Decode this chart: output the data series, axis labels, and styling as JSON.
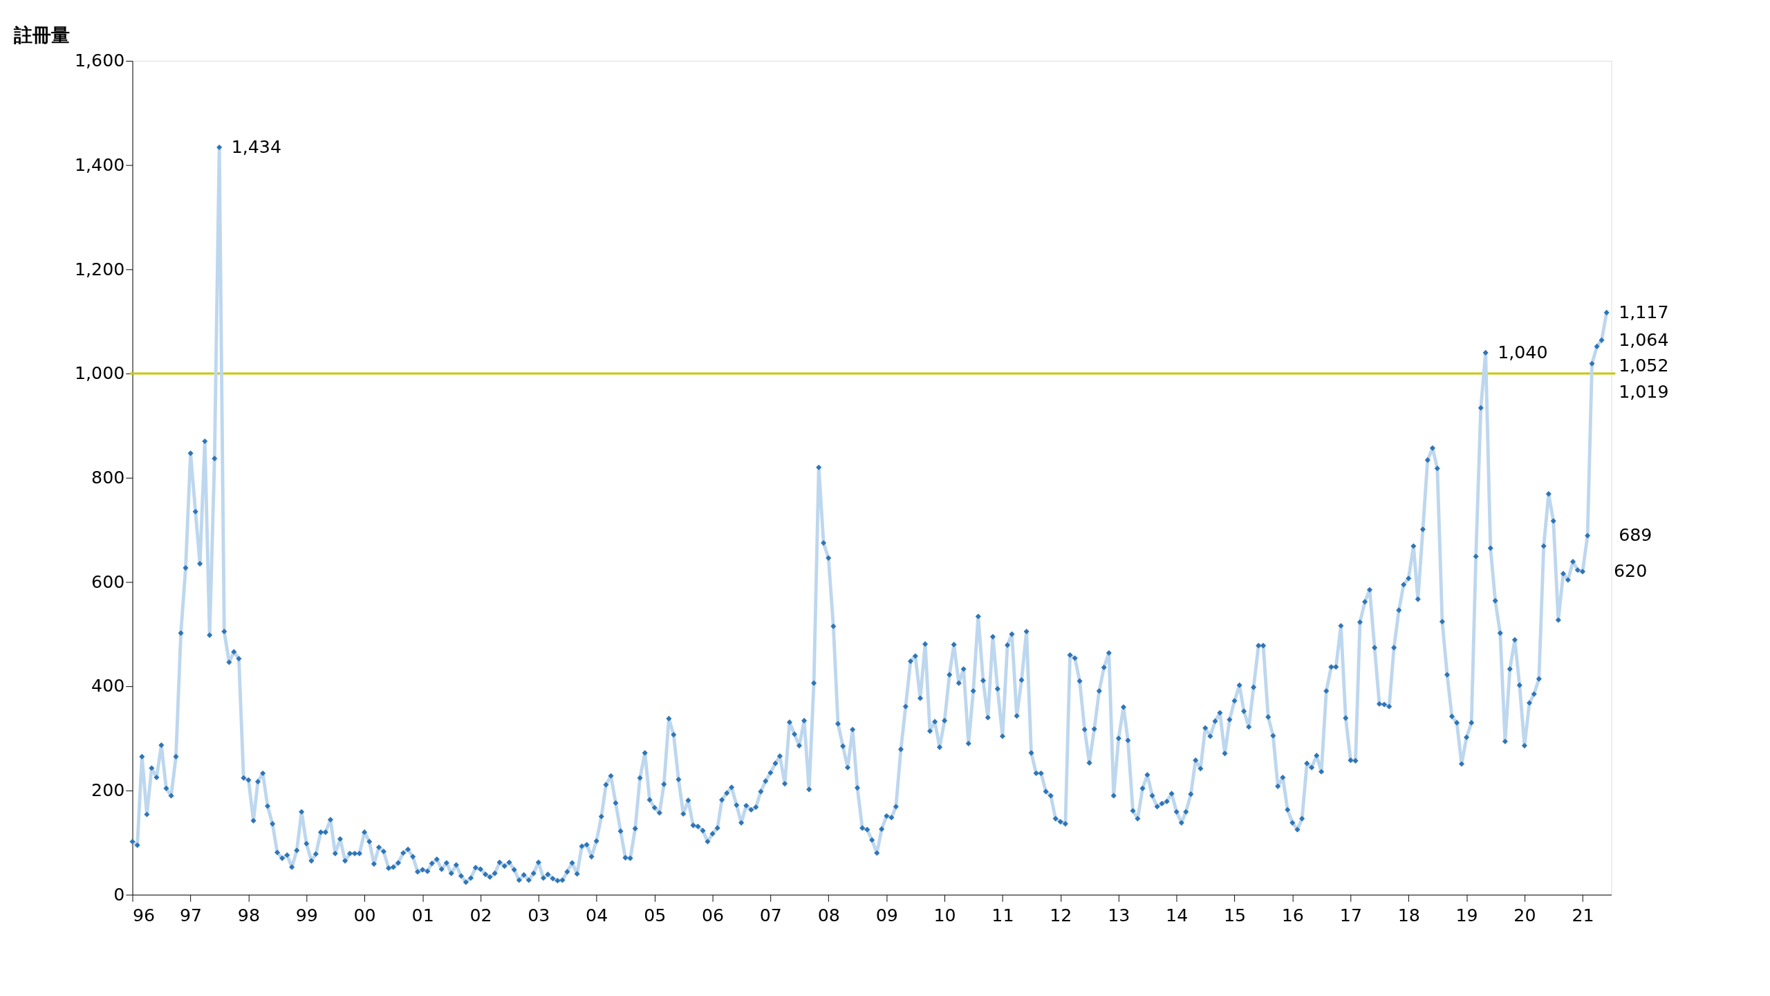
{
  "chart_data": {
    "type": "line",
    "ylabel": "註冊量",
    "x": [
      "1996-01",
      "1996-02",
      "1996-03",
      "1996-04",
      "1996-05",
      "1996-06",
      "1996-07",
      "1996-08",
      "1996-09",
      "1996-10",
      "1996-11",
      "1996-12",
      "1997-01",
      "1997-02",
      "1997-03",
      "1997-04",
      "1997-05",
      "1997-06",
      "1997-07",
      "1997-08",
      "1997-09",
      "1997-10",
      "1997-11",
      "1997-12",
      "1998-01",
      "1998-02",
      "1998-03",
      "1998-04",
      "1998-05",
      "1998-06",
      "1998-07",
      "1998-08",
      "1998-09",
      "1998-10",
      "1998-11",
      "1998-12",
      "1999-01",
      "1999-02",
      "1999-03",
      "1999-04",
      "1999-05",
      "1999-06",
      "1999-07",
      "1999-08",
      "1999-09",
      "1999-10",
      "1999-11",
      "1999-12",
      "2000-01",
      "2000-02",
      "2000-03",
      "2000-04",
      "2000-05",
      "2000-06",
      "2000-07",
      "2000-08",
      "2000-09",
      "2000-10",
      "2000-11",
      "2000-12",
      "2001-01",
      "2001-02",
      "2001-03",
      "2001-04",
      "2001-05",
      "2001-06",
      "2001-07",
      "2001-08",
      "2001-09",
      "2001-10",
      "2001-11",
      "2001-12",
      "2002-01",
      "2002-02",
      "2002-03",
      "2002-04",
      "2002-05",
      "2002-06",
      "2002-07",
      "2002-08",
      "2002-09",
      "2002-10",
      "2002-11",
      "2002-12",
      "2003-01",
      "2003-02",
      "2003-03",
      "2003-04",
      "2003-05",
      "2003-06",
      "2003-07",
      "2003-08",
      "2003-09",
      "2003-10",
      "2003-11",
      "2003-12",
      "2004-01",
      "2004-02",
      "2004-03",
      "2004-04",
      "2004-05",
      "2004-06",
      "2004-07",
      "2004-08",
      "2004-09",
      "2004-10",
      "2004-11",
      "2004-12",
      "2005-01",
      "2005-02",
      "2005-03",
      "2005-04",
      "2005-05",
      "2005-06",
      "2005-07",
      "2005-08",
      "2005-09",
      "2005-10",
      "2005-11",
      "2005-12",
      "2006-01",
      "2006-02",
      "2006-03",
      "2006-04",
      "2006-05",
      "2006-06",
      "2006-07",
      "2006-08",
      "2006-09",
      "2006-10",
      "2006-11",
      "2006-12",
      "2007-01",
      "2007-02",
      "2007-03",
      "2007-04",
      "2007-05",
      "2007-06",
      "2007-07",
      "2007-08",
      "2007-09",
      "2007-10",
      "2007-11",
      "2007-12",
      "2008-01",
      "2008-02",
      "2008-03",
      "2008-04",
      "2008-05",
      "2008-06",
      "2008-07",
      "2008-08",
      "2008-09",
      "2008-10",
      "2008-11",
      "2008-12",
      "2009-01",
      "2009-02",
      "2009-03",
      "2009-04",
      "2009-05",
      "2009-06",
      "2009-07",
      "2009-08",
      "2009-09",
      "2009-10",
      "2009-11",
      "2009-12",
      "2010-01",
      "2010-02",
      "2010-03",
      "2010-04",
      "2010-05",
      "2010-06",
      "2010-07",
      "2010-08",
      "2010-09",
      "2010-10",
      "2010-11",
      "2010-12",
      "2011-01",
      "2011-02",
      "2011-03",
      "2011-04",
      "2011-05",
      "2011-06",
      "2011-07",
      "2011-08",
      "2011-09",
      "2011-10",
      "2011-11",
      "2011-12",
      "2012-01",
      "2012-02",
      "2012-03",
      "2012-04",
      "2012-05",
      "2012-06",
      "2012-07",
      "2012-08",
      "2012-09",
      "2012-10",
      "2012-11",
      "2012-12",
      "2013-01",
      "2013-02",
      "2013-03",
      "2013-04",
      "2013-05",
      "2013-06",
      "2013-07",
      "2013-08",
      "2013-09",
      "2013-10",
      "2013-11",
      "2013-12",
      "2014-01",
      "2014-02",
      "2014-03",
      "2014-04",
      "2014-05",
      "2014-06",
      "2014-07",
      "2014-08",
      "2014-09",
      "2014-10",
      "2014-11",
      "2014-12",
      "2015-01",
      "2015-02",
      "2015-03",
      "2015-04",
      "2015-05",
      "2015-06",
      "2015-07",
      "2015-08",
      "2015-09",
      "2015-10",
      "2015-11",
      "2015-12",
      "2016-01",
      "2016-02",
      "2016-03",
      "2016-04",
      "2016-05",
      "2016-06",
      "2016-07",
      "2016-08",
      "2016-09",
      "2016-10",
      "2016-11",
      "2016-12",
      "2017-01",
      "2017-02",
      "2017-03",
      "2017-04",
      "2017-05",
      "2017-06",
      "2017-07",
      "2017-08",
      "2017-09",
      "2017-10",
      "2017-11",
      "2017-12",
      "2018-01",
      "2018-02",
      "2018-03",
      "2018-04",
      "2018-05",
      "2018-06",
      "2018-07",
      "2018-08",
      "2018-09",
      "2018-10",
      "2018-11",
      "2018-12",
      "2019-01",
      "2019-02",
      "2019-03",
      "2019-04",
      "2019-05",
      "2019-06",
      "2019-07",
      "2019-08",
      "2019-09",
      "2019-10",
      "2019-11",
      "2019-12",
      "2020-01",
      "2020-02",
      "2020-03",
      "2020-04",
      "2020-05",
      "2020-06",
      "2020-07",
      "2020-08",
      "2020-09",
      "2020-10",
      "2020-11",
      "2020-12",
      "2021-01",
      "2021-02",
      "2021-03",
      "2021-04",
      "2021-05",
      "2021-06"
    ],
    "series": [
      {
        "color": "#bdd7ee",
        "values": [
          102,
          95,
          265,
          154,
          243,
          225,
          287,
          204,
          190,
          265,
          502,
          627,
          847,
          735,
          635,
          870,
          498,
          837,
          1434,
          505,
          446,
          466,
          453,
          224,
          220,
          142,
          217,
          233,
          170,
          136,
          81,
          70,
          76,
          53,
          85,
          159,
          98,
          65,
          78,
          120,
          120,
          144,
          79,
          107,
          65,
          79,
          79,
          79,
          120,
          102,
          59,
          91,
          83,
          51,
          53,
          61,
          80,
          87,
          73,
          44,
          48,
          45,
          60,
          68,
          49,
          61,
          41,
          57,
          36,
          24,
          32,
          52,
          49,
          39,
          34,
          41,
          62,
          55,
          62,
          48,
          28,
          38,
          28,
          41,
          62,
          32,
          39,
          31,
          27,
          28,
          44,
          61,
          40,
          93,
          96,
          73,
          103,
          150,
          211,
          228,
          176,
          122,
          71,
          70,
          127,
          224,
          272,
          182,
          167,
          157,
          212,
          338,
          307,
          221,
          155,
          181,
          133,
          131,
          123,
          102,
          117,
          128,
          182,
          195,
          206,
          172,
          138,
          171,
          163,
          168,
          198,
          218,
          234,
          252,
          266,
          213,
          331,
          308,
          286,
          334,
          202,
          406,
          820,
          675,
          646,
          515,
          328,
          285,
          244,
          317,
          205,
          128,
          125,
          105,
          80,
          126,
          151,
          148,
          169,
          279,
          361,
          448,
          458,
          377,
          481,
          314,
          332,
          283,
          334,
          422,
          480,
          406,
          433,
          290,
          391,
          534,
          411,
          340,
          495,
          395,
          304,
          479,
          500,
          343,
          412,
          505,
          272,
          233,
          233,
          198,
          190,
          146,
          140,
          136,
          460,
          454,
          410,
          317,
          253,
          318,
          391,
          436,
          464,
          190,
          300,
          360,
          296,
          161,
          146,
          204,
          230,
          190,
          169,
          175,
          179,
          194,
          159,
          138,
          159,
          193,
          258,
          242,
          320,
          304,
          333,
          349,
          271,
          336,
          372,
          402,
          352,
          322,
          398,
          478,
          478,
          341,
          305,
          208,
          225,
          163,
          138,
          125,
          146,
          252,
          244,
          267,
          236,
          391,
          437,
          437,
          516,
          339,
          258,
          257,
          523,
          562,
          585,
          474,
          366,
          365,
          361,
          474,
          546,
          595,
          607,
          669,
          567,
          701,
          834,
          857,
          818,
          524,
          422,
          342,
          330,
          251,
          302,
          330,
          649,
          934,
          1040,
          665,
          564,
          502,
          294,
          433,
          489,
          402,
          286,
          368,
          385,
          414,
          669,
          769,
          717,
          527,
          616,
          604,
          639,
          623,
          620,
          689,
          1019,
          1052,
          1064,
          1117
        ]
      }
    ],
    "xlim": [
      "1996-01",
      "2021-07"
    ],
    "xticks": [
      {
        "value": "1996-01",
        "label": "96"
      },
      {
        "value": "1997-01",
        "label": "97"
      },
      {
        "value": "1998-01",
        "label": "98"
      },
      {
        "value": "1999-01",
        "label": "99"
      },
      {
        "value": "2000-01",
        "label": "00"
      },
      {
        "value": "2001-01",
        "label": "01"
      },
      {
        "value": "2002-01",
        "label": "02"
      },
      {
        "value": "2003-01",
        "label": "03"
      },
      {
        "value": "2004-01",
        "label": "04"
      },
      {
        "value": "2005-01",
        "label": "05"
      },
      {
        "value": "2006-01",
        "label": "06"
      },
      {
        "value": "2007-01",
        "label": "07"
      },
      {
        "value": "2008-01",
        "label": "08"
      },
      {
        "value": "2009-01",
        "label": "09"
      },
      {
        "value": "2010-01",
        "label": "10"
      },
      {
        "value": "2011-01",
        "label": "11"
      },
      {
        "value": "2012-01",
        "label": "12"
      },
      {
        "value": "2013-01",
        "label": "13"
      },
      {
        "value": "2014-01",
        "label": "14"
      },
      {
        "value": "2015-01",
        "label": "15"
      },
      {
        "value": "2016-01",
        "label": "16"
      },
      {
        "value": "2017-01",
        "label": "17"
      },
      {
        "value": "2018-01",
        "label": "18"
      },
      {
        "value": "2019-01",
        "label": "19"
      },
      {
        "value": "2020-01",
        "label": "20"
      },
      {
        "value": "2021-01",
        "label": "21"
      }
    ],
    "ylim": [
      0,
      1600
    ],
    "yticks": [
      0,
      200,
      400,
      600,
      800,
      {
        "value": 1000,
        "label": "1,000"
      },
      {
        "value": 1200,
        "label": "1,200"
      },
      {
        "value": 1400,
        "label": "1,400"
      },
      {
        "value": 1600,
        "label": "1,600"
      }
    ],
    "ref_lines": [
      {
        "axis": "y",
        "value": 1000,
        "color": "#c8c800"
      }
    ],
    "annotations": [
      {
        "text": "1,434",
        "x": "1997-07",
        "y": 1434
      },
      {
        "text": "1,040",
        "x": "2019-05",
        "y": 1040
      },
      {
        "text": "620",
        "x": "2021-01",
        "y": 620
      },
      {
        "text": "689",
        "x": "2021-02",
        "y": 689
      },
      {
        "text": "1,019",
        "x": "2021-03",
        "y": 1019
      },
      {
        "text": "1,052",
        "x": "2021-04",
        "y": 1052
      },
      {
        "text": "1,064",
        "x": "2021-05",
        "y": 1064
      },
      {
        "text": "1,117",
        "x": "2021-06",
        "y": 1117
      }
    ],
    "marker": "diamond",
    "line_style": "solid",
    "grid": false
  }
}
